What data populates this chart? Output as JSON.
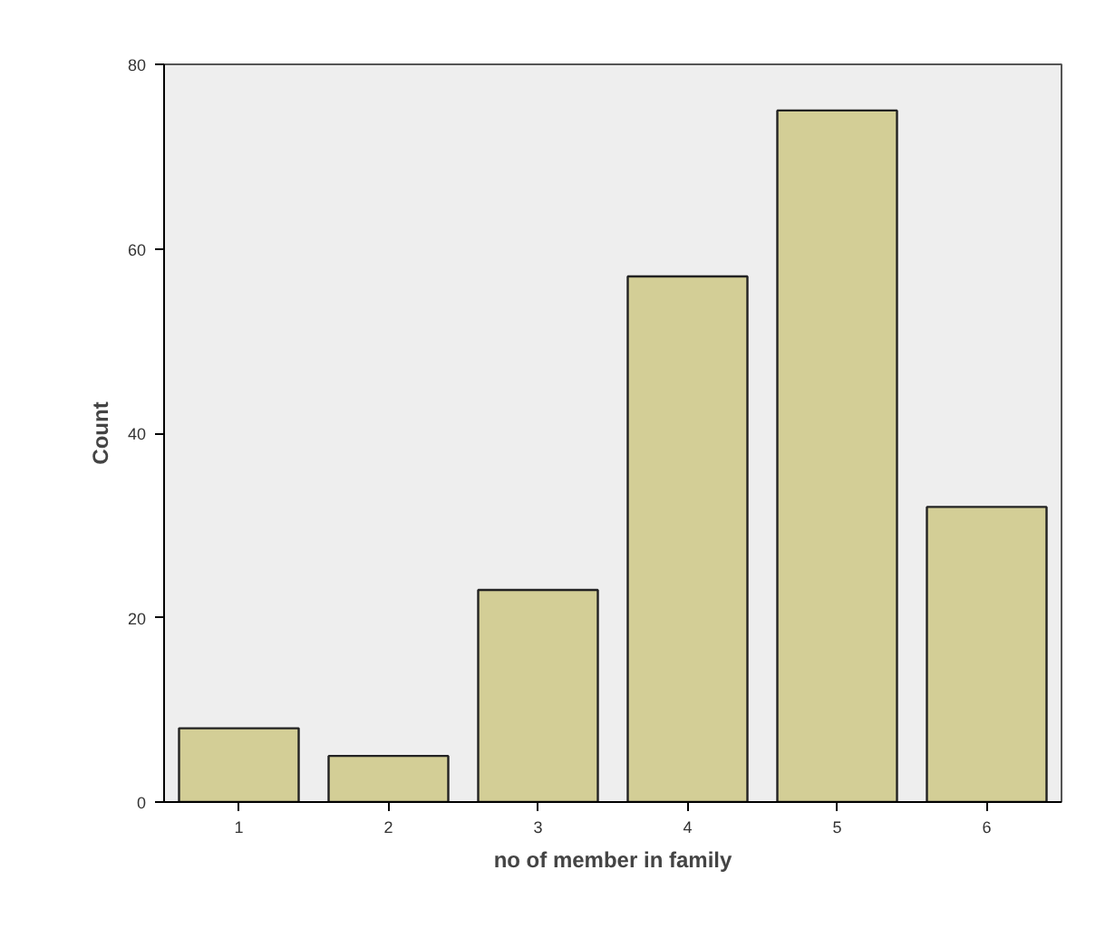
{
  "chart_data": {
    "type": "bar",
    "xlabel": "no of member in family",
    "ylabel": "Count",
    "categories": [
      "1",
      "2",
      "3",
      "4",
      "5",
      "6"
    ],
    "values": [
      8,
      5,
      23,
      57,
      75,
      32
    ],
    "color": "#d3ce96",
    "ylim": [
      0,
      80
    ],
    "yticks": [
      0,
      20,
      40,
      60,
      80
    ],
    "grid": false
  }
}
